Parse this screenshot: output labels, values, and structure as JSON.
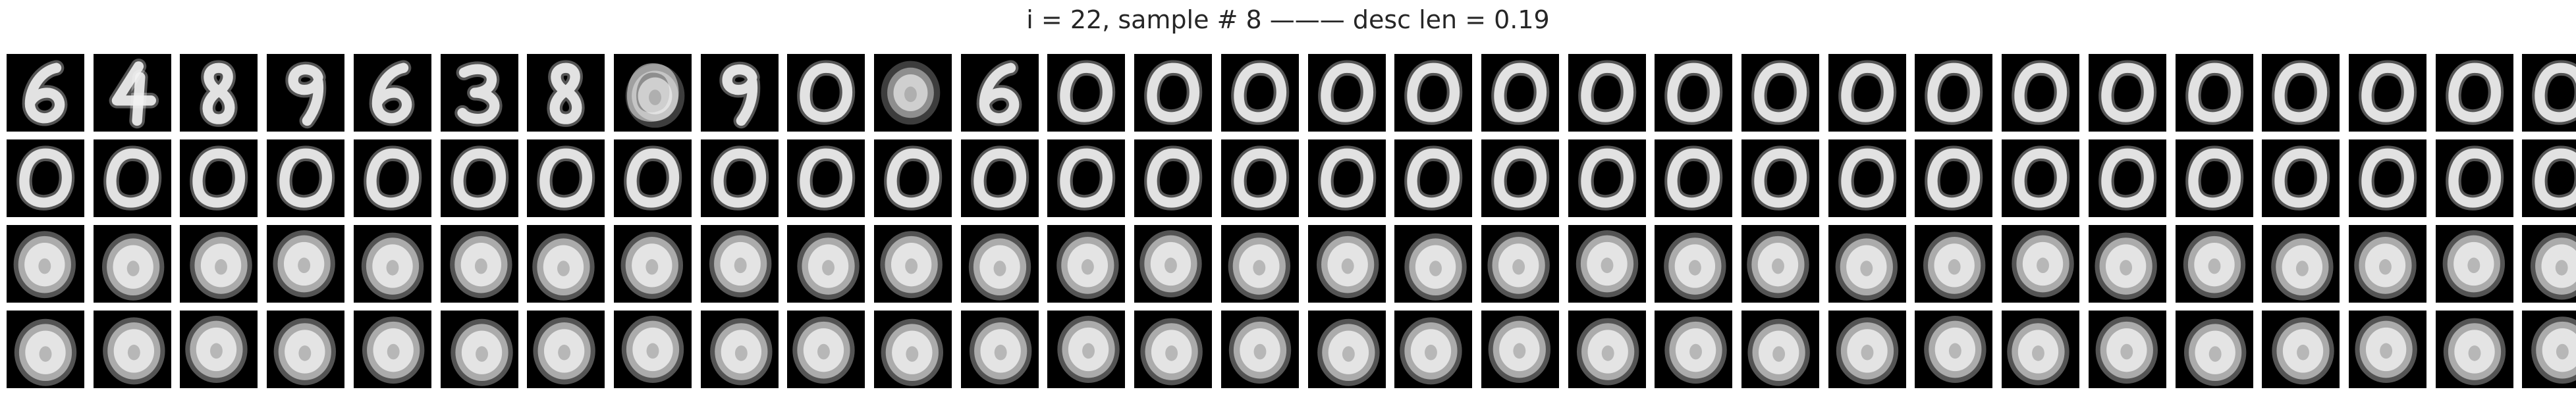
{
  "figure": {
    "title": "i = 22, sample # 8 ——— desc len = 0.19"
  },
  "grid": {
    "rows": 4,
    "cols": 30,
    "background_color": "#000000",
    "digit_color": "#f2f2f2",
    "row_contents": [
      [
        "6",
        "4",
        "8",
        "9",
        "6",
        "3",
        "8",
        "blob-6",
        "9",
        "0",
        "blob",
        "6",
        "0",
        "0",
        "0",
        "0",
        "0",
        "0",
        "0",
        "0",
        "0",
        "0",
        "0",
        "0",
        "0",
        "0",
        "0",
        "0",
        "0",
        "0"
      ],
      [
        "0",
        "0",
        "0",
        "0",
        "0",
        "0",
        "0",
        "0",
        "0",
        "0",
        "0",
        "0",
        "0",
        "0",
        "0",
        "0",
        "0",
        "0",
        "0",
        "0",
        "0",
        "0",
        "0",
        "0",
        "0",
        "0",
        "0",
        "0",
        "0",
        "0"
      ],
      [
        "blob",
        "blob",
        "blob",
        "blob",
        "blob",
        "blob",
        "blob",
        "blob",
        "blob",
        "blob",
        "blob",
        "blob",
        "blob",
        "blob",
        "blob",
        "blob",
        "blob",
        "blob",
        "blob",
        "blob",
        "blob",
        "blob",
        "blob",
        "blob",
        "blob",
        "blob",
        "blob",
        "blob",
        "blob",
        "blob"
      ],
      [
        "blob",
        "blob",
        "blob",
        "blob",
        "blob",
        "blob",
        "blob",
        "blob",
        "blob",
        "blob",
        "blob",
        "blob",
        "blob",
        "blob",
        "blob",
        "blob",
        "blob",
        "blob",
        "blob",
        "blob",
        "blob",
        "blob",
        "blob",
        "blob",
        "blob",
        "blob",
        "blob",
        "blob",
        "blob",
        "blob"
      ]
    ]
  }
}
